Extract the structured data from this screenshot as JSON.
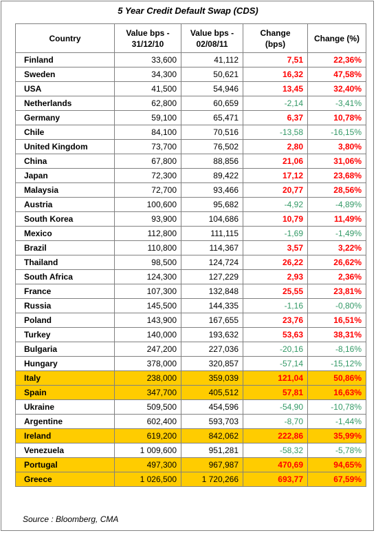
{
  "title": "5 Year Credit Default Swap (CDS)",
  "headers": {
    "country": "Country",
    "v1_line1": "Value bps -",
    "v1_line2": "31/12/10",
    "v2_line1": "Value bps -",
    "v2_line2": "02/08/11",
    "chg_line1": "Change",
    "chg_line2": "(bps)",
    "pct": "Change (%)"
  },
  "colors": {
    "up": "#ff0000",
    "down": "#339966",
    "highlight": "#ffcc00"
  },
  "rows": [
    {
      "country": "Finland",
      "v1": "33,600",
      "v2": "41,112",
      "chg": "7,51",
      "pct": "22,36%",
      "dir": "up",
      "hl": false
    },
    {
      "country": "Sweden",
      "v1": "34,300",
      "v2": "50,621",
      "chg": "16,32",
      "pct": "47,58%",
      "dir": "up",
      "hl": false
    },
    {
      "country": "USA",
      "v1": "41,500",
      "v2": "54,946",
      "chg": "13,45",
      "pct": "32,40%",
      "dir": "up",
      "hl": false
    },
    {
      "country": "Netherlands",
      "v1": "62,800",
      "v2": "60,659",
      "chg": "-2,14",
      "pct": "-3,41%",
      "dir": "down",
      "hl": false
    },
    {
      "country": "Germany",
      "v1": "59,100",
      "v2": "65,471",
      "chg": "6,37",
      "pct": "10,78%",
      "dir": "up",
      "hl": false
    },
    {
      "country": "Chile",
      "v1": "84,100",
      "v2": "70,516",
      "chg": "-13,58",
      "pct": "-16,15%",
      "dir": "down",
      "hl": false
    },
    {
      "country": "United Kingdom",
      "v1": "73,700",
      "v2": "76,502",
      "chg": "2,80",
      "pct": "3,80%",
      "dir": "up",
      "hl": false
    },
    {
      "country": "China",
      "v1": "67,800",
      "v2": "88,856",
      "chg": "21,06",
      "pct": "31,06%",
      "dir": "up",
      "hl": false
    },
    {
      "country": "Japan",
      "v1": "72,300",
      "v2": "89,422",
      "chg": "17,12",
      "pct": "23,68%",
      "dir": "up",
      "hl": false
    },
    {
      "country": "Malaysia",
      "v1": "72,700",
      "v2": "93,466",
      "chg": "20,77",
      "pct": "28,56%",
      "dir": "up",
      "hl": false
    },
    {
      "country": "Austria",
      "v1": "100,600",
      "v2": "95,682",
      "chg": "-4,92",
      "pct": "-4,89%",
      "dir": "down",
      "hl": false
    },
    {
      "country": "South Korea",
      "v1": "93,900",
      "v2": "104,686",
      "chg": "10,79",
      "pct": "11,49%",
      "dir": "up",
      "hl": false
    },
    {
      "country": "Mexico",
      "v1": "112,800",
      "v2": "111,115",
      "chg": "-1,69",
      "pct": "-1,49%",
      "dir": "down",
      "hl": false
    },
    {
      "country": "Brazil",
      "v1": "110,800",
      "v2": "114,367",
      "chg": "3,57",
      "pct": "3,22%",
      "dir": "up",
      "hl": false
    },
    {
      "country": "Thailand",
      "v1": "98,500",
      "v2": "124,724",
      "chg": "26,22",
      "pct": "26,62%",
      "dir": "up",
      "hl": false
    },
    {
      "country": "South Africa",
      "v1": "124,300",
      "v2": "127,229",
      "chg": "2,93",
      "pct": "2,36%",
      "dir": "up",
      "hl": false
    },
    {
      "country": "France",
      "v1": "107,300",
      "v2": "132,848",
      "chg": "25,55",
      "pct": "23,81%",
      "dir": "up",
      "hl": false
    },
    {
      "country": "Russia",
      "v1": "145,500",
      "v2": "144,335",
      "chg": "-1,16",
      "pct": "-0,80%",
      "dir": "down",
      "hl": false
    },
    {
      "country": "Poland",
      "v1": "143,900",
      "v2": "167,655",
      "chg": "23,76",
      "pct": "16,51%",
      "dir": "up",
      "hl": false
    },
    {
      "country": "Turkey",
      "v1": "140,000",
      "v2": "193,632",
      "chg": "53,63",
      "pct": "38,31%",
      "dir": "up",
      "hl": false
    },
    {
      "country": "Bulgaria",
      "v1": "247,200",
      "v2": "227,036",
      "chg": "-20,16",
      "pct": "-8,16%",
      "dir": "down",
      "hl": false
    },
    {
      "country": "Hungary",
      "v1": "378,000",
      "v2": "320,857",
      "chg": "-57,14",
      "pct": "-15,12%",
      "dir": "down",
      "hl": false
    },
    {
      "country": "Italy",
      "v1": "238,000",
      "v2": "359,039",
      "chg": "121,04",
      "pct": "50,86%",
      "dir": "up",
      "hl": true
    },
    {
      "country": "Spain",
      "v1": "347,700",
      "v2": "405,512",
      "chg": "57,81",
      "pct": "16,63%",
      "dir": "up",
      "hl": true
    },
    {
      "country": "Ukraine",
      "v1": "509,500",
      "v2": "454,596",
      "chg": "-54,90",
      "pct": "-10,78%",
      "dir": "down",
      "hl": false
    },
    {
      "country": "Argentine",
      "v1": "602,400",
      "v2": "593,703",
      "chg": "-8,70",
      "pct": "-1,44%",
      "dir": "down",
      "hl": false
    },
    {
      "country": "Ireland",
      "v1": "619,200",
      "v2": "842,062",
      "chg": "222,86",
      "pct": "35,99%",
      "dir": "up",
      "hl": true
    },
    {
      "country": "Venezuela",
      "v1": "1 009,600",
      "v2": "951,281",
      "chg": "-58,32",
      "pct": "-5,78%",
      "dir": "down",
      "hl": false
    },
    {
      "country": "Portugal",
      "v1": "497,300",
      "v2": "967,987",
      "chg": "470,69",
      "pct": "94,65%",
      "dir": "up",
      "hl": true
    },
    {
      "country": "Greece",
      "v1": "1 026,500",
      "v2": "1 720,266",
      "chg": "693,77",
      "pct": "67,59%",
      "dir": "up",
      "hl": true
    }
  ],
  "source": "Source : Bloomberg, CMA"
}
